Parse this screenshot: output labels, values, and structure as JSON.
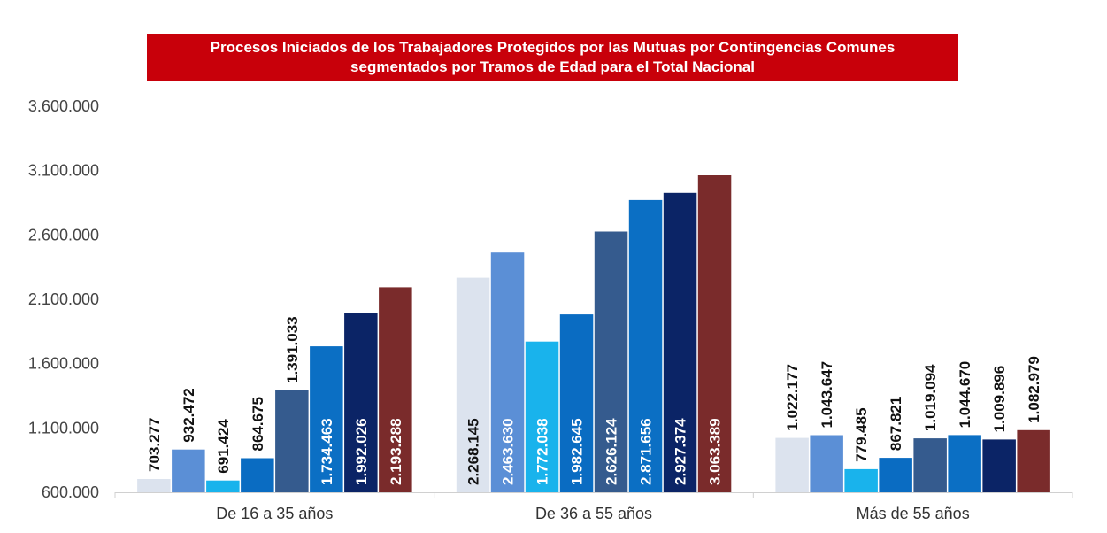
{
  "chart_data": {
    "type": "bar",
    "title_line1": "Procesos Iniciados de los Trabajadores Protegidos por las Mutuas por Contingencias Comunes",
    "title_line2": "segmentados por Tramos de Edad para el Total Nacional",
    "categories": [
      "De 16 a 35 años",
      "De 36 a 55 años",
      "Más de 55 años"
    ],
    "ylim": [
      600000,
      3600000
    ],
    "yticks": [
      600000,
      1100000,
      1600000,
      2100000,
      2600000,
      3100000,
      3600000
    ],
    "ytick_labels": [
      "600.000",
      "1.100.000",
      "1.600.000",
      "2.100.000",
      "2.600.000",
      "3.100.000",
      "3.600.000"
    ],
    "grid": false,
    "series": [
      {
        "color": "#dce3ee",
        "values": [
          703277,
          2268145,
          1022177
        ],
        "labels": [
          "703.277",
          "2.268.145",
          "1.022.177"
        ]
      },
      {
        "color": "#5b8fd6",
        "values": [
          932472,
          2463630,
          1043647
        ],
        "labels": [
          "932.472",
          "2.463.630",
          "1.043.647"
        ]
      },
      {
        "color": "#19b3ec",
        "values": [
          691424,
          1772038,
          779485
        ],
        "labels": [
          "691.424",
          "1.772.038",
          "779.485"
        ]
      },
      {
        "color": "#0a6cc2",
        "values": [
          864675,
          1982645,
          867821
        ],
        "labels": [
          "864.675",
          "1.982.645",
          "867.821"
        ]
      },
      {
        "color": "#355b8e",
        "values": [
          1391033,
          2626124,
          1019094
        ],
        "labels": [
          "1.391.033",
          "2.626.124",
          "1.019.094"
        ]
      },
      {
        "color": "#0b6fc4",
        "values": [
          1734463,
          2871656,
          1044670
        ],
        "labels": [
          "1.734.463",
          "2.871.656",
          "1.044.670"
        ]
      },
      {
        "color": "#0b2466",
        "values": [
          1992026,
          2927374,
          1009896
        ],
        "labels": [
          "1.992.026",
          "2.927.374",
          "1.009.896"
        ]
      },
      {
        "color": "#7a2b2b",
        "values": [
          2193288,
          3063389,
          1082979
        ],
        "labels": [
          "2.193.288",
          "3.063.389",
          "1.082.979"
        ]
      }
    ]
  }
}
